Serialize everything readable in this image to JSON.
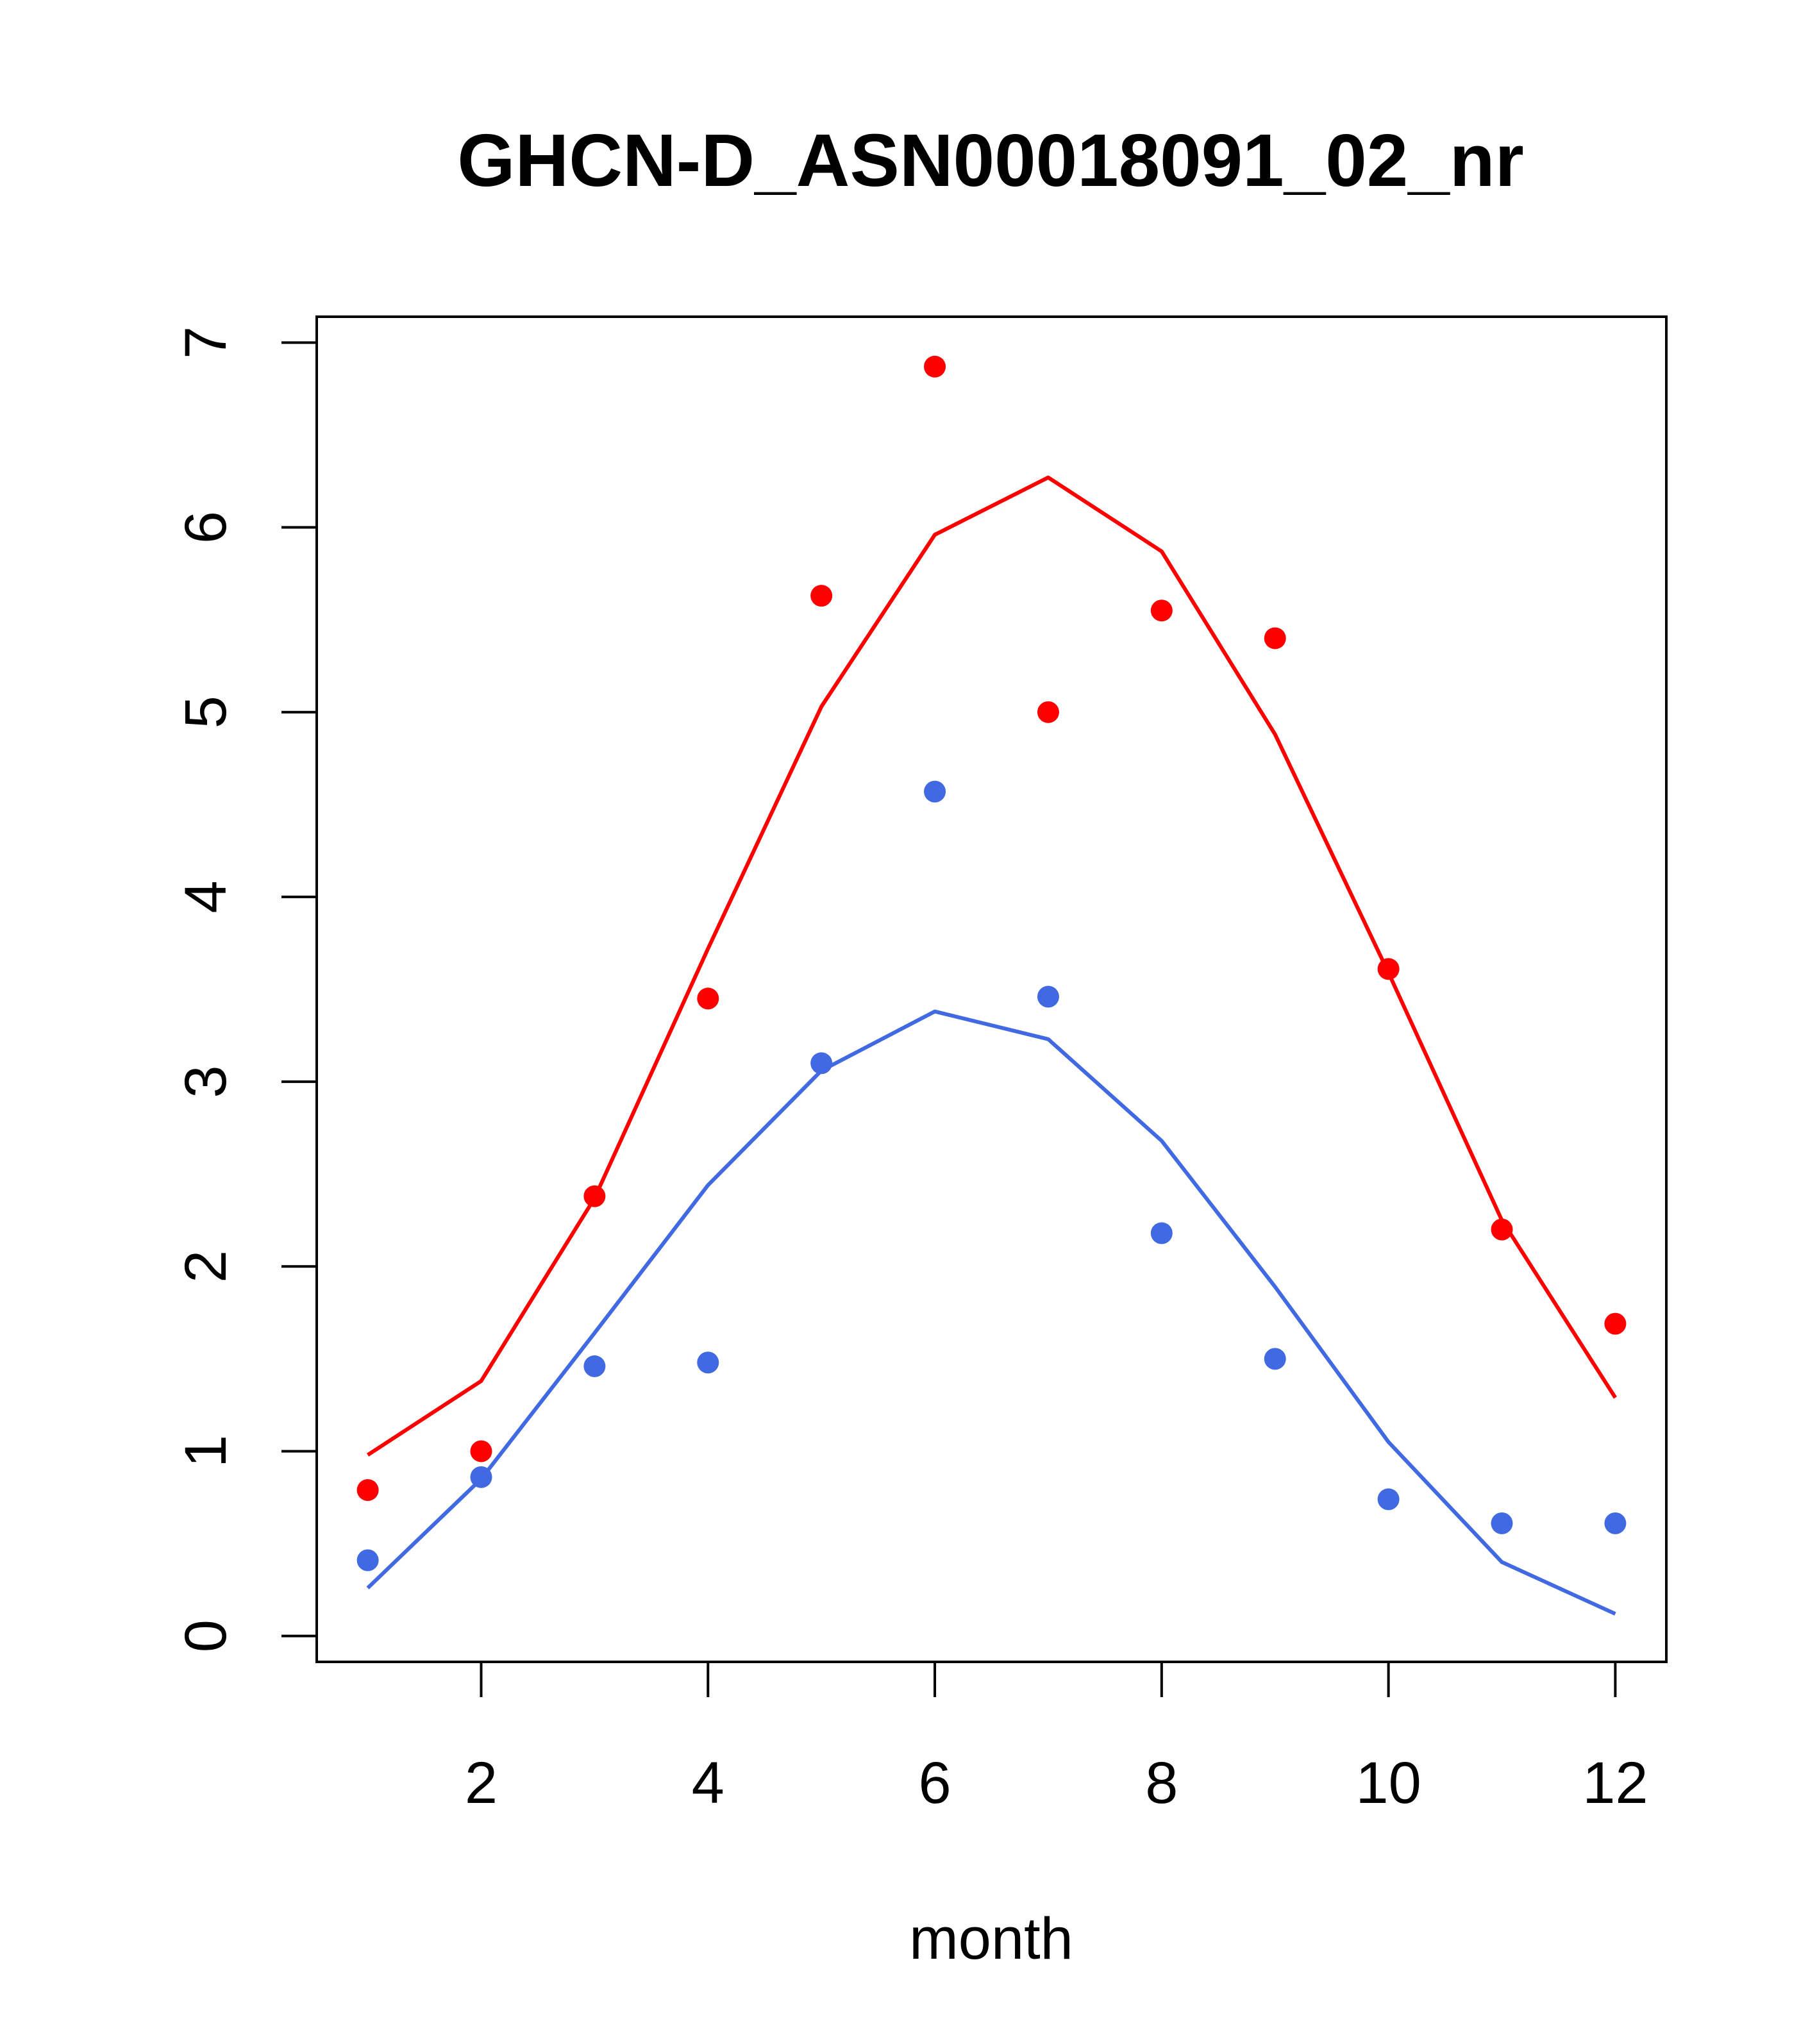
{
  "chart_data": {
    "type": "scatter",
    "title": "GHCN-D_ASN00018091_02_nr",
    "xlabel": "month",
    "ylabel": "",
    "xlim": [
      0.55,
      12.45
    ],
    "ylim": [
      -0.14,
      7.14
    ],
    "x_ticks": [
      "2",
      "4",
      "6",
      "8",
      "10",
      "12"
    ],
    "y_ticks": [
      "0",
      "1",
      "2",
      "3",
      "4",
      "5",
      "6",
      "7"
    ],
    "grid": false,
    "legend": "none",
    "series": [
      {
        "color": "#ff0000",
        "points_x": [
          1,
          2,
          3,
          4,
          5,
          6,
          7,
          8,
          9,
          10,
          11,
          12
        ],
        "points_y": [
          0.79,
          1.0,
          2.38,
          3.45,
          5.63,
          6.87,
          5.0,
          5.55,
          5.4,
          3.61,
          2.2,
          1.69
        ],
        "line_x": [
          1,
          2,
          3,
          4,
          5,
          6,
          7,
          8,
          9,
          10,
          11,
          12
        ],
        "line_y": [
          0.98,
          1.38,
          2.37,
          3.72,
          5.03,
          5.96,
          6.27,
          5.87,
          4.88,
          3.59,
          2.25,
          1.29
        ]
      },
      {
        "color": "#4169e1",
        "points_x": [
          1,
          2,
          3,
          4,
          5,
          6,
          7,
          8,
          9,
          10,
          11,
          12
        ],
        "points_y": [
          0.41,
          0.86,
          1.46,
          1.48,
          3.1,
          4.57,
          3.46,
          2.18,
          1.5,
          0.74,
          0.61,
          0.61
        ],
        "line_x": [
          1,
          2,
          3,
          4,
          5,
          6,
          7,
          8,
          9,
          10,
          11,
          12
        ],
        "line_y": [
          0.26,
          0.85,
          1.64,
          2.44,
          3.06,
          3.38,
          3.23,
          2.68,
          1.89,
          1.05,
          0.4,
          0.12
        ]
      }
    ]
  }
}
